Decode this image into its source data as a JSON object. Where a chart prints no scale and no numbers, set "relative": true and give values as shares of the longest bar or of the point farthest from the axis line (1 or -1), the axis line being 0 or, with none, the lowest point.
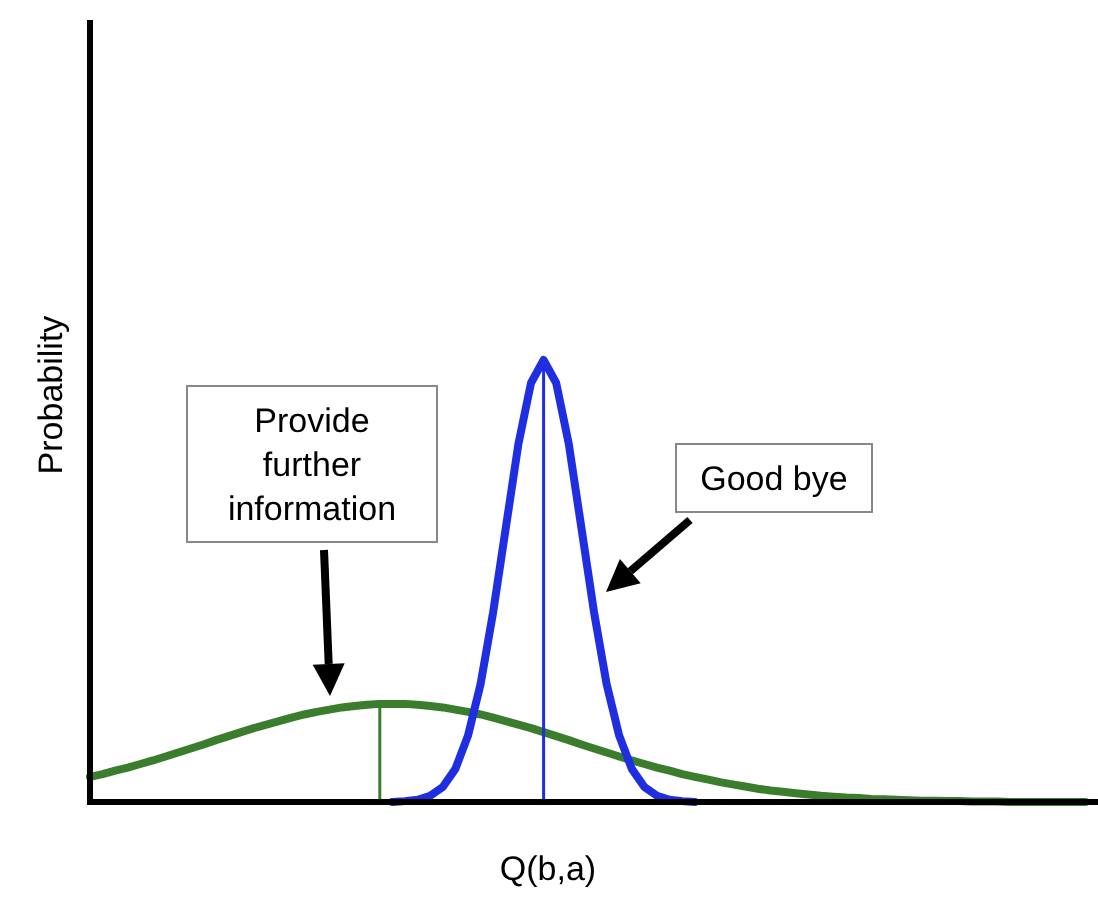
{
  "chart_data": {
    "type": "line",
    "relative": true,
    "xlabel": "Q(b,a)",
    "ylabel": "Probability",
    "grid": false,
    "legend": false,
    "marker": "none",
    "line_style": "solid",
    "categories": [
      null,
      null,
      null,
      null,
      null,
      null,
      null,
      null,
      null,
      null,
      null,
      null,
      null,
      null,
      null,
      null,
      null,
      null,
      null,
      null,
      null,
      null,
      null,
      null,
      null,
      null,
      null,
      null,
      null,
      null,
      null,
      null,
      null,
      null,
      null,
      null,
      null,
      null,
      null,
      null,
      null,
      null,
      null,
      null,
      null,
      null,
      null,
      null,
      null,
      null,
      null,
      null,
      null,
      null,
      null,
      null,
      null,
      null,
      null,
      null,
      null,
      null,
      null,
      null,
      null,
      null,
      null,
      null,
      null,
      null,
      null,
      null,
      null,
      null,
      null,
      null,
      null,
      null,
      null,
      null
    ],
    "series": [
      {
        "color": "#3a7d2c",
        "values": [
          0.057,
          0.063,
          0.071,
          0.078,
          0.086,
          0.094,
          0.103,
          0.112,
          0.121,
          0.13,
          0.14,
          0.149,
          0.158,
          0.167,
          0.175,
          0.183,
          0.191,
          0.198,
          0.204,
          0.209,
          0.214,
          0.217,
          0.22,
          0.222,
          0.222,
          0.222,
          0.22,
          0.217,
          0.214,
          0.209,
          0.204,
          0.198,
          0.191,
          0.183,
          0.175,
          0.167,
          0.158,
          0.149,
          0.14,
          0.13,
          0.121,
          0.112,
          0.103,
          0.094,
          0.086,
          0.078,
          0.071,
          0.063,
          0.057,
          0.051,
          0.045,
          0.04,
          0.035,
          0.03,
          0.026,
          0.023,
          0.02,
          0.017,
          0.014,
          0.012,
          0.01,
          0.009,
          0.007,
          0.006,
          0.005,
          0.004,
          0.003,
          0.003,
          0.002,
          0.002,
          0.001,
          0.001,
          0.001,
          0,
          0,
          0,
          0,
          0,
          0,
          0
        ]
      },
      {
        "color": "#1f2ee0",
        "values": [
          null,
          null,
          null,
          null,
          null,
          null,
          null,
          null,
          null,
          null,
          null,
          null,
          null,
          null,
          null,
          null,
          null,
          null,
          null,
          null,
          null,
          null,
          null,
          null,
          0,
          0.002,
          0.005,
          0.014,
          0.034,
          0.075,
          0.15,
          0.267,
          0.43,
          0.62,
          0.81,
          0.948,
          1,
          0.948,
          0.81,
          0.62,
          0.43,
          0.267,
          0.15,
          0.075,
          0.034,
          0.014,
          0.005,
          0.002,
          0,
          null,
          null,
          null,
          null,
          null,
          null,
          null,
          null,
          null,
          null,
          null,
          null,
          null,
          null,
          null,
          null,
          null,
          null,
          null,
          null,
          null,
          null,
          null,
          null,
          null,
          null,
          null,
          null,
          null,
          null,
          null
        ]
      }
    ],
    "annotations": [
      "Provide\nfurther\ninformation",
      "Good bye"
    ]
  }
}
